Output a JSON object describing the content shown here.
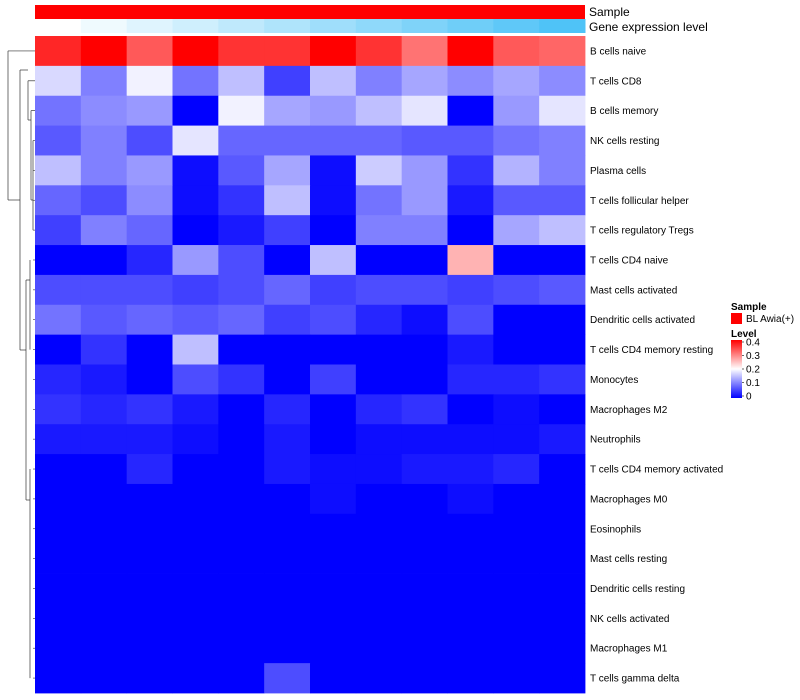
{
  "chart_data": {
    "type": "heatmap",
    "title": "",
    "annotations": {
      "sample_label": "Sample",
      "expression_label": "Gene expression level",
      "sample_color": "#ff0000",
      "expression_gradient": [
        "#ffffff",
        "#4fc3f7"
      ]
    },
    "rows": [
      "B cells naive",
      "T cells CD8",
      "B cells memory",
      "NK cells resting",
      "Plasma cells",
      "T cells follicular helper",
      "T cells regulatory  Tregs",
      "T cells CD4 naive",
      "Mast cells activated",
      "Dendritic cells activated",
      "T cells CD4 memory resting",
      "Monocytes",
      "Macrophages M2",
      "Neutrophils",
      "T cells CD4 memory activated",
      "Macrophages M0",
      "Eosinophils",
      "Mast cells resting",
      "Dendritic cells resting",
      "NK cells activated",
      "Macrophages M1",
      "T cells gamma delta"
    ],
    "n_columns": 12,
    "values": [
      [
        0.37,
        0.4,
        0.33,
        0.4,
        0.36,
        0.36,
        0.4,
        0.36,
        0.31,
        0.4,
        0.33,
        0.32
      ],
      [
        0.17,
        0.1,
        0.19,
        0.09,
        0.15,
        0.05,
        0.15,
        0.1,
        0.13,
        0.11,
        0.13,
        0.11
      ],
      [
        0.09,
        0.11,
        0.12,
        0.0,
        0.19,
        0.13,
        0.12,
        0.15,
        0.18,
        0.0,
        0.12,
        0.18
      ],
      [
        0.07,
        0.1,
        0.06,
        0.18,
        0.08,
        0.08,
        0.08,
        0.08,
        0.07,
        0.07,
        0.09,
        0.1
      ],
      [
        0.15,
        0.1,
        0.12,
        0.01,
        0.07,
        0.13,
        0.01,
        0.16,
        0.12,
        0.04,
        0.14,
        0.1
      ],
      [
        0.08,
        0.06,
        0.11,
        0.01,
        0.04,
        0.15,
        0.01,
        0.09,
        0.12,
        0.02,
        0.07,
        0.07
      ],
      [
        0.05,
        0.1,
        0.08,
        0.0,
        0.02,
        0.05,
        0.0,
        0.1,
        0.1,
        0.0,
        0.13,
        0.15
      ],
      [
        0.0,
        0.0,
        0.03,
        0.12,
        0.06,
        0.0,
        0.15,
        0.0,
        0.0,
        0.26,
        0.0,
        0.0
      ],
      [
        0.06,
        0.06,
        0.06,
        0.05,
        0.06,
        0.08,
        0.05,
        0.06,
        0.06,
        0.05,
        0.06,
        0.07
      ],
      [
        0.09,
        0.07,
        0.08,
        0.07,
        0.08,
        0.05,
        0.06,
        0.03,
        0.01,
        0.06,
        0.0,
        0.0
      ],
      [
        0.0,
        0.04,
        0.0,
        0.15,
        0.0,
        0.0,
        0.0,
        0.0,
        0.0,
        0.02,
        0.0,
        0.0
      ],
      [
        0.03,
        0.02,
        0.0,
        0.06,
        0.04,
        0.0,
        0.05,
        0.0,
        0.0,
        0.03,
        0.03,
        0.04
      ],
      [
        0.04,
        0.03,
        0.04,
        0.02,
        0.0,
        0.03,
        0.0,
        0.03,
        0.04,
        0.0,
        0.01,
        0.0
      ],
      [
        0.02,
        0.02,
        0.02,
        0.01,
        0.0,
        0.02,
        0.0,
        0.01,
        0.01,
        0.01,
        0.01,
        0.02
      ],
      [
        0.0,
        0.0,
        0.03,
        0.0,
        0.0,
        0.02,
        0.01,
        0.01,
        0.02,
        0.02,
        0.03,
        0.0
      ],
      [
        0.0,
        0.0,
        0.0,
        0.0,
        0.0,
        0.0,
        0.01,
        0.0,
        0.0,
        0.01,
        0.0,
        0.0
      ],
      [
        0.0,
        0.0,
        0.0,
        0.0,
        0.0,
        0.0,
        0.0,
        0.0,
        0.0,
        0.0,
        0.0,
        0.0
      ],
      [
        0.0,
        0.0,
        0.0,
        0.0,
        0.0,
        0.0,
        0.0,
        0.0,
        0.0,
        0.0,
        0.0,
        0.0
      ],
      [
        0.0,
        0.0,
        0.0,
        0.0,
        0.0,
        0.0,
        0.0,
        0.0,
        0.0,
        0.0,
        0.0,
        0.0
      ],
      [
        0.0,
        0.0,
        0.0,
        0.0,
        0.0,
        0.0,
        0.0,
        0.0,
        0.0,
        0.0,
        0.0,
        0.0
      ],
      [
        0.0,
        0.0,
        0.0,
        0.0,
        0.0,
        0.0,
        0.0,
        0.0,
        0.0,
        0.0,
        0.0,
        0.0
      ],
      [
        0.0,
        0.0,
        0.0,
        0.0,
        0.0,
        0.06,
        0.0,
        0.0,
        0.0,
        0.0,
        0.0,
        0.0
      ]
    ],
    "color_scale": {
      "stops": [
        [
          0,
          "#0000ff"
        ],
        [
          0.2,
          "#ffffff"
        ],
        [
          0.4,
          "#ff0000"
        ]
      ],
      "min": 0,
      "max": 0.4
    },
    "legend": {
      "sample_title": "Sample",
      "sample_entry": "BL Awia(+)",
      "sample_color": "#ff0000",
      "level_title": "Level",
      "level_ticks": [
        "0.4",
        "0.3",
        "0.2",
        "0.1",
        "0"
      ],
      "placement": "right"
    }
  }
}
